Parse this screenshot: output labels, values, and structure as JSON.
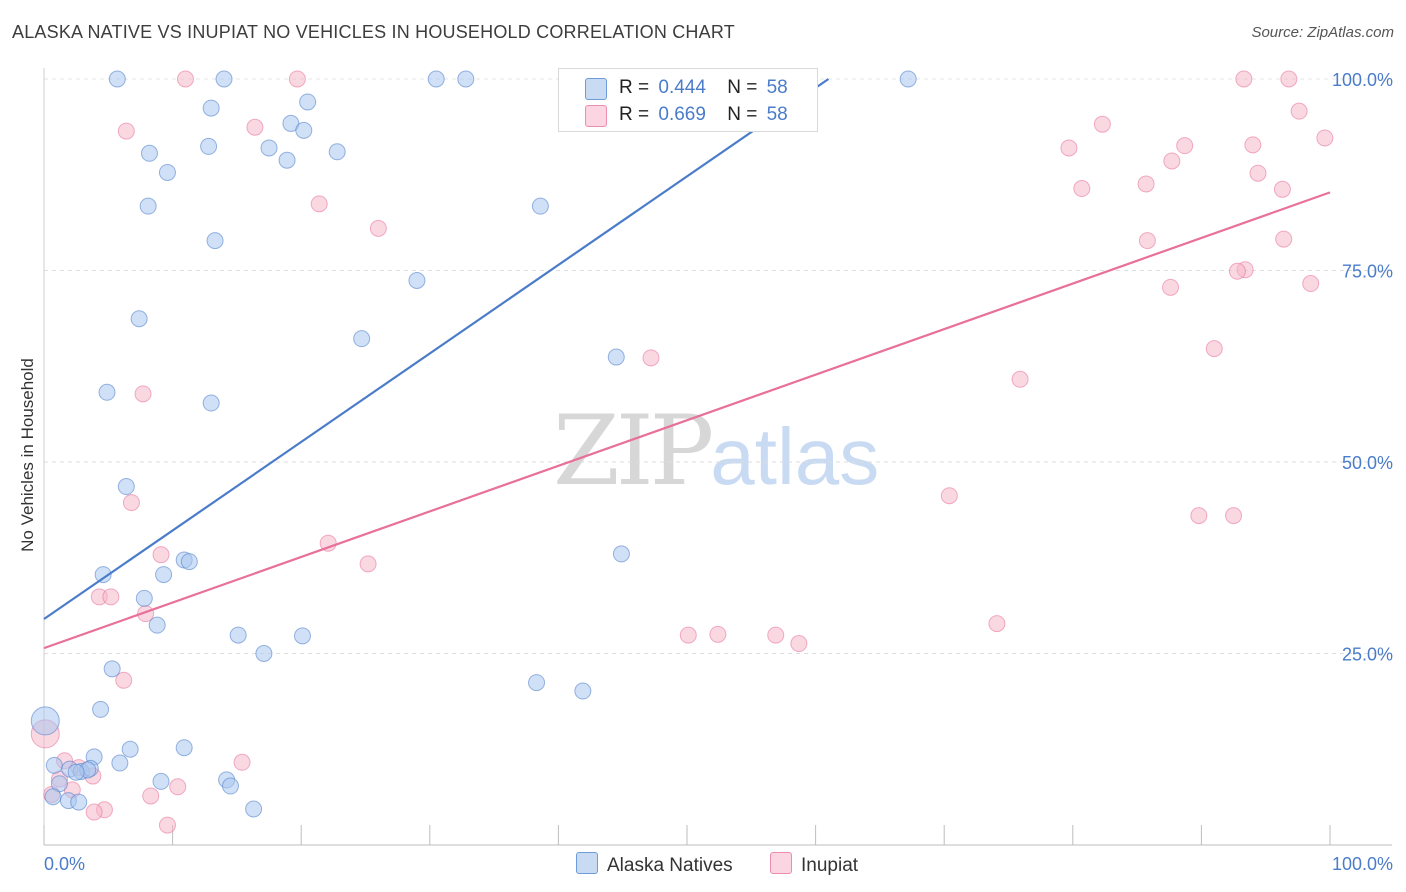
{
  "header": {
    "title": "ALASKA NATIVE VS INUPIAT NO VEHICLES IN HOUSEHOLD CORRELATION CHART",
    "source": "Source: ZipAtlas.com"
  },
  "watermark": {
    "zip": "ZIP",
    "atlas": "atlas"
  },
  "legend": {
    "rows": [
      {
        "r_label": "R =",
        "r_value": "0.444",
        "n_label": "N =",
        "n_value": "58",
        "color": "#a9c7ee"
      },
      {
        "r_label": "R =",
        "r_value": "0.669",
        "n_label": "N =",
        "n_value": "58",
        "color": "#f6b8cb"
      }
    ]
  },
  "bottom_legend": [
    {
      "label": "Alaska Natives",
      "color": "#a9c7ee"
    },
    {
      "label": "Inupiat",
      "color": "#f6b8cb"
    }
  ],
  "chart_data": {
    "type": "scatter",
    "title": "ALASKA NATIVE VS INUPIAT NO VEHICLES IN HOUSEHOLD CORRELATION CHART",
    "xlabel": "",
    "ylabel": "No Vehicles in Household",
    "xlim": [
      0,
      100
    ],
    "ylim": [
      0,
      100
    ],
    "x_tick_labels": [
      "0.0%",
      "100.0%"
    ],
    "y_tick_labels": [
      "25.0%",
      "50.0%",
      "75.0%",
      "100.0%"
    ],
    "y_ticks": [
      25,
      50,
      75,
      100
    ],
    "grid": true,
    "series": [
      {
        "name": "Alaska Natives",
        "color": "#4a7cc9",
        "fill": "#a9c7ee",
        "trend": {
          "x": [
            0,
            61
          ],
          "y": [
            29.5,
            100
          ]
        },
        "points": [
          [
            5.7,
            100
          ],
          [
            14,
            100
          ],
          [
            30.5,
            100
          ],
          [
            32.8,
            100
          ],
          [
            67.2,
            100
          ],
          [
            13,
            96.2
          ],
          [
            20.5,
            97
          ],
          [
            19.2,
            94.2
          ],
          [
            20.2,
            93.3
          ],
          [
            8.2,
            90.3
          ],
          [
            12.8,
            91.2
          ],
          [
            17.5,
            91
          ],
          [
            18.9,
            89.4
          ],
          [
            22.8,
            90.5
          ],
          [
            9.6,
            87.8
          ],
          [
            8.1,
            83.4
          ],
          [
            38.6,
            83.4
          ],
          [
            13.3,
            78.9
          ],
          [
            29,
            73.7
          ],
          [
            7.4,
            68.7
          ],
          [
            24.7,
            66.1
          ],
          [
            44.5,
            63.7
          ],
          [
            4.9,
            59.1
          ],
          [
            13,
            57.7
          ],
          [
            6.4,
            46.8
          ],
          [
            44.9,
            38
          ],
          [
            4.6,
            35.3
          ],
          [
            9.3,
            35.3
          ],
          [
            10.9,
            37.2
          ],
          [
            11.3,
            37
          ],
          [
            7.8,
            32.2
          ],
          [
            8.8,
            28.7
          ],
          [
            15.1,
            27.4
          ],
          [
            20.1,
            27.3
          ],
          [
            17.1,
            25
          ],
          [
            5.3,
            23
          ],
          [
            38.3,
            21.2
          ],
          [
            41.9,
            20.1
          ],
          [
            4.4,
            17.7
          ],
          [
            0.1,
            16.2
          ],
          [
            3.9,
            11.5
          ],
          [
            6.7,
            12.5
          ],
          [
            10.9,
            12.7
          ],
          [
            0.8,
            10.4
          ],
          [
            2,
            9.9
          ],
          [
            2.9,
            9.6
          ],
          [
            3.6,
            10
          ],
          [
            5.9,
            10.7
          ],
          [
            1.2,
            8
          ],
          [
            9.1,
            8.3
          ],
          [
            14.2,
            8.5
          ],
          [
            14.5,
            7.7
          ],
          [
            0.7,
            6.3
          ],
          [
            1.9,
            5.8
          ],
          [
            2.7,
            5.6
          ],
          [
            16.3,
            4.7
          ],
          [
            3.4,
            9.8
          ],
          [
            2.5,
            9.5
          ]
        ]
      },
      {
        "name": "Inupiat",
        "color": "#e8709a",
        "fill": "#f6b8cb",
        "trend": {
          "x": [
            0,
            100
          ],
          "y": [
            25.7,
            85.2
          ]
        },
        "points": [
          [
            11,
            100
          ],
          [
            19.7,
            100
          ],
          [
            93.3,
            100
          ],
          [
            96.8,
            100
          ],
          [
            97.6,
            95.8
          ],
          [
            6.4,
            93.2
          ],
          [
            16.4,
            93.7
          ],
          [
            82.3,
            94.1
          ],
          [
            99.6,
            92.3
          ],
          [
            79.7,
            91
          ],
          [
            88.7,
            91.3
          ],
          [
            94,
            91.4
          ],
          [
            87.7,
            89.3
          ],
          [
            94.4,
            87.7
          ],
          [
            80.7,
            85.7
          ],
          [
            85.7,
            86.3
          ],
          [
            96.3,
            85.6
          ],
          [
            21.4,
            83.7
          ],
          [
            26,
            80.5
          ],
          [
            85.8,
            78.9
          ],
          [
            96.4,
            79.1
          ],
          [
            93.4,
            75.1
          ],
          [
            92.8,
            74.9
          ],
          [
            87.6,
            72.8
          ],
          [
            98.5,
            73.3
          ],
          [
            91,
            64.8
          ],
          [
            47.2,
            63.6
          ],
          [
            75.9,
            60.8
          ],
          [
            7.7,
            58.9
          ],
          [
            70.4,
            45.6
          ],
          [
            6.8,
            44.7
          ],
          [
            89.8,
            43
          ],
          [
            92.5,
            43
          ],
          [
            22.1,
            39.4
          ],
          [
            9.1,
            37.9
          ],
          [
            25.2,
            36.7
          ],
          [
            4.3,
            32.4
          ],
          [
            5.2,
            32.4
          ],
          [
            7.9,
            30.2
          ],
          [
            74.1,
            28.9
          ],
          [
            50.1,
            27.4
          ],
          [
            52.4,
            27.5
          ],
          [
            56.9,
            27.4
          ],
          [
            58.7,
            26.3
          ],
          [
            6.2,
            21.5
          ],
          [
            0.1,
            14.5
          ],
          [
            15.4,
            10.8
          ],
          [
            2.7,
            10.1
          ],
          [
            3.8,
            9
          ],
          [
            1.2,
            8.6
          ],
          [
            2.2,
            7.2
          ],
          [
            10.4,
            7.6
          ],
          [
            8.3,
            6.4
          ],
          [
            0.6,
            6.6
          ],
          [
            4.7,
            4.6
          ],
          [
            3.9,
            4.3
          ],
          [
            9.6,
            2.6
          ],
          [
            1.6,
            11
          ]
        ]
      }
    ]
  }
}
